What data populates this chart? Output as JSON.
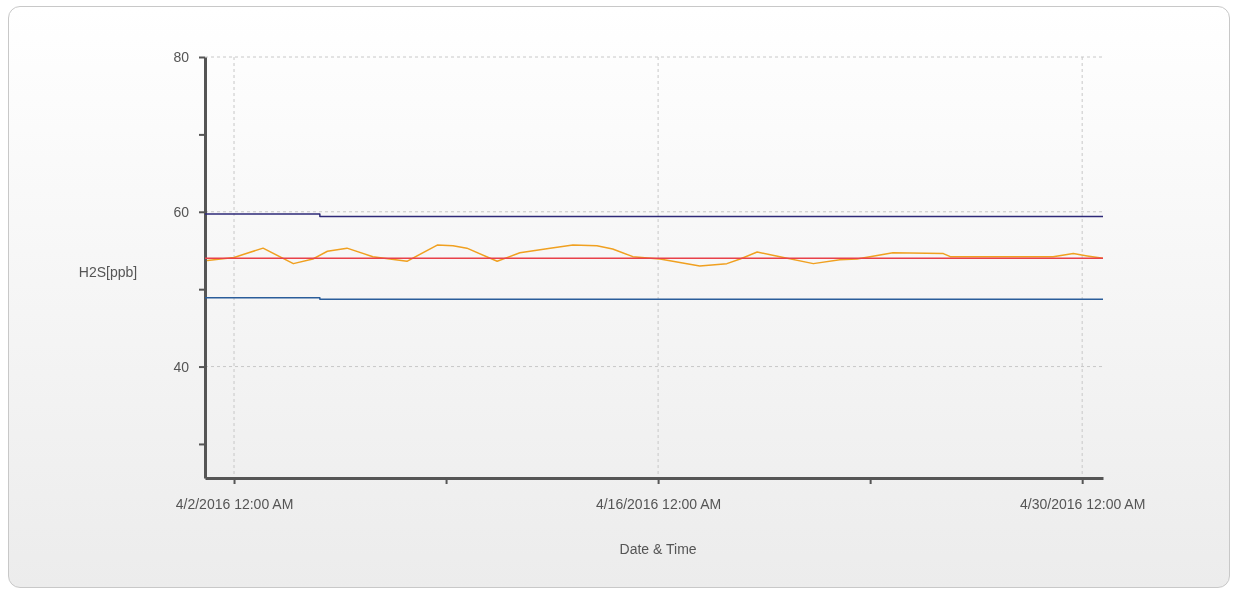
{
  "chart_data": {
    "type": "line",
    "xlabel": "Date & Time",
    "ylabel": "H2S[ppb]",
    "xlim": [
      "2016-04-01T01:00",
      "2016-04-30T16:30"
    ],
    "xticks": [
      {
        "value": "2016-04-02T00:00",
        "label": "4/2/2016 12:00 AM"
      },
      {
        "value": "2016-04-09T00:00",
        "label": null
      },
      {
        "value": "2016-04-16T00:00",
        "label": "4/16/2016 12:00 AM"
      },
      {
        "value": "2016-04-23T00:00",
        "label": null
      },
      {
        "value": "2016-04-30T00:00",
        "label": "4/30/2016 12:00 AM"
      }
    ],
    "ylim": [
      25.6,
      80
    ],
    "yticks": [
      {
        "value": 30,
        "label": null
      },
      40,
      {
        "value": 50,
        "label": null
      },
      60,
      {
        "value": 70,
        "label": null
      },
      80
    ],
    "grid": true,
    "marker": "none",
    "line_style": "solid",
    "series": [
      {
        "color": "#2e2a78",
        "x": [
          "2016-04-01T01:00",
          "2016-04-04T20:00",
          "2016-04-04T20:00",
          "2016-04-30T16:30"
        ],
        "values": [
          59.7,
          59.7,
          59.4,
          59.4
        ]
      },
      {
        "color": "#2a5d9a",
        "x": [
          "2016-04-01T01:00",
          "2016-04-04T20:00",
          "2016-04-04T20:00",
          "2016-04-30T16:30"
        ],
        "values": [
          48.9,
          48.9,
          48.7,
          48.7
        ]
      },
      {
        "color": "#f0a020",
        "x": [
          "2016-04-01T03:00",
          "2016-04-02T00:00",
          "2016-04-02T23:00",
          "2016-04-03T23:00",
          "2016-04-04T14:30",
          "2016-04-05T02:00",
          "2016-04-05T17:30",
          "2016-04-06T14:00",
          "2016-04-07T17:00",
          "2016-04-08T17:00",
          "2016-04-09T05:30",
          "2016-04-09T16:30",
          "2016-04-10T16:30",
          "2016-04-11T10:30",
          "2016-04-12T10:30",
          "2016-04-13T04:30",
          "2016-04-13T23:30",
          "2016-04-14T12:00",
          "2016-04-15T04:00",
          "2016-04-16T01:30",
          "2016-04-17T09:00",
          "2016-04-18T06:30",
          "2016-04-18T17:00",
          "2016-04-19T06:30",
          "2016-04-20T00:30",
          "2016-04-21T03:00",
          "2016-04-22T00:00",
          "2016-04-22T13:30",
          "2016-04-23T18:00",
          "2016-04-25T10:00",
          "2016-04-25T15:30",
          "2016-04-27T09:30",
          "2016-04-29T01:00",
          "2016-04-29T17:00",
          "2016-04-30T04:00",
          "2016-04-30T16:30"
        ],
        "values": [
          53.7,
          54.1,
          55.3,
          53.3,
          53.9,
          54.9,
          55.3,
          54.2,
          53.6,
          55.7,
          55.6,
          55.3,
          53.6,
          54.7,
          55.3,
          55.7,
          55.6,
          55.2,
          54.2,
          53.9,
          53.0,
          53.3,
          53.9,
          54.8,
          54.2,
          53.3,
          53.8,
          53.9,
          54.7,
          54.6,
          54.2,
          54.2,
          54.2,
          54.6,
          54.3,
          54.0
        ]
      }
    ],
    "ref_lines": [
      {
        "axis": "y",
        "value": 54,
        "color": "#e8404a"
      }
    ]
  }
}
